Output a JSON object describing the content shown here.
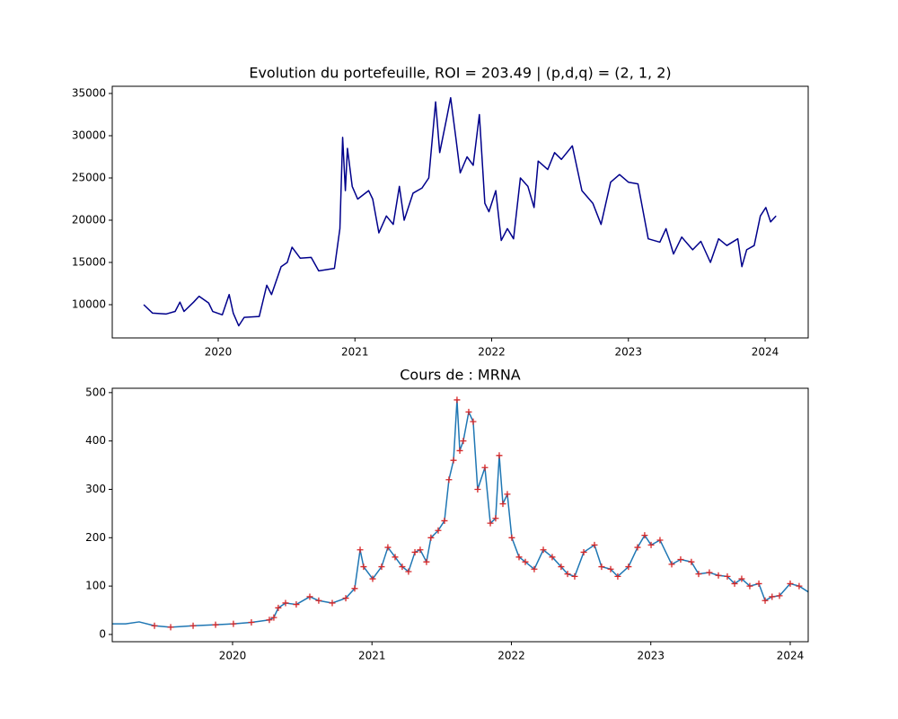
{
  "chart_data": [
    {
      "type": "line",
      "title": "Evolution du portefeuille, ROI = 203.49  |  (p,d,q) = (2, 1, 2)",
      "xlim": [
        2019.225,
        2024.315
      ],
      "xticks": [
        2020,
        2021,
        2022,
        2023,
        2024
      ],
      "ylim": [
        6064,
        35851
      ],
      "yticks": [
        10000,
        15000,
        20000,
        25000,
        30000,
        35000
      ],
      "series": [
        {
          "color": "#00008b",
          "x": [
            2019.455,
            2019.52,
            2019.62,
            2019.685,
            2019.72,
            2019.75,
            2019.82,
            2019.86,
            2019.93,
            2019.96,
            2020.03,
            2020.08,
            2020.11,
            2020.15,
            2020.19,
            2020.3,
            2020.355,
            2020.39,
            2020.46,
            2020.505,
            2020.54,
            2020.6,
            2020.68,
            2020.735,
            2020.85,
            2020.89,
            2020.91,
            2020.93,
            2020.945,
            2020.98,
            2021.02,
            2021.1,
            2021.13,
            2021.175,
            2021.23,
            2021.28,
            2021.325,
            2021.36,
            2021.425,
            2021.49,
            2021.54,
            2021.59,
            2021.62,
            2021.67,
            2021.7,
            2021.74,
            2021.77,
            2021.82,
            2021.865,
            2021.91,
            2021.95,
            2021.98,
            2022.03,
            2022.07,
            2022.115,
            2022.16,
            2022.21,
            2022.265,
            2022.31,
            2022.34,
            2022.41,
            2022.46,
            2022.51,
            2022.59,
            2022.66,
            2022.74,
            2022.8,
            2022.87,
            2022.935,
            2023.0,
            2023.07,
            2023.145,
            2023.23,
            2023.275,
            2023.33,
            2023.39,
            2023.47,
            2023.53,
            2023.6,
            2023.66,
            2023.72,
            2023.8,
            2023.83,
            2023.865,
            2023.92,
            2023.965,
            2024.005,
            2024.04,
            2024.08
          ],
          "values": [
            10000,
            9000,
            8900,
            9200,
            10300,
            9200,
            10300,
            11000,
            10200,
            9200,
            8800,
            11200,
            9000,
            7500,
            8500,
            8600,
            12300,
            11200,
            14500,
            15000,
            16800,
            15500,
            15600,
            14000,
            14300,
            19000,
            29800,
            23500,
            28500,
            24000,
            22500,
            23500,
            22500,
            18500,
            20500,
            19500,
            24000,
            20000,
            23200,
            23800,
            25000,
            34000,
            28000,
            32000,
            34500,
            29500,
            25600,
            27500,
            26500,
            32500,
            22000,
            21000,
            23500,
            17600,
            19000,
            17800,
            25000,
            24000,
            21500,
            27000,
            26000,
            28000,
            27200,
            28800,
            23500,
            22000,
            19500,
            24500,
            25400,
            24500,
            24300,
            17800,
            17400,
            19000,
            16000,
            18000,
            16500,
            17500,
            15000,
            17800,
            17000,
            17800,
            14500,
            16500,
            17000,
            20500,
            21500,
            19800,
            20500
          ]
        }
      ]
    },
    {
      "type": "line",
      "title": "Cours de : MRNA",
      "xlim": [
        2019.137,
        2024.129
      ],
      "xticks": [
        2020,
        2021,
        2022,
        2023,
        2024
      ],
      "ylim": [
        -15,
        509
      ],
      "yticks": [
        0,
        100,
        200,
        300,
        400,
        500
      ],
      "series": [
        {
          "color": "#1f77b4",
          "x": [
            2019.137,
            2019.233,
            2019.33,
            2019.44,
            2019.556,
            2019.717,
            2019.878,
            2020.006,
            2020.135,
            2020.264,
            2020.296,
            2020.328,
            2020.38,
            2020.457,
            2020.554,
            2020.618,
            2020.715,
            2020.812,
            2020.876,
            2020.915,
            2020.94,
            2021.005,
            2021.069,
            2021.114,
            2021.166,
            2021.217,
            2021.262,
            2021.308,
            2021.346,
            2021.391,
            2021.423,
            2021.475,
            2021.52,
            2021.552,
            2021.585,
            2021.61,
            2021.63,
            2021.655,
            2021.694,
            2021.726,
            2021.758,
            2021.81,
            2021.849,
            2021.887,
            2021.913,
            2021.939,
            2021.971,
            2022.003,
            2022.055,
            2022.1,
            2022.164,
            2022.229,
            2022.293,
            2022.357,
            2022.403,
            2022.454,
            2022.519,
            2022.596,
            2022.647,
            2022.712,
            2022.763,
            2022.84,
            2022.905,
            2022.956,
            2023.002,
            2023.066,
            2023.15,
            2023.214,
            2023.291,
            2023.343,
            2023.42,
            2023.485,
            2023.549,
            2023.601,
            2023.652,
            2023.71,
            2023.775,
            2023.82,
            2023.87,
            2023.923,
            2024.0,
            2024.064,
            2024.129
          ],
          "values": [
            22,
            22,
            26,
            18,
            15,
            18,
            20,
            22,
            25,
            30,
            35,
            55,
            65,
            62,
            78,
            70,
            65,
            75,
            95,
            175,
            140,
            115,
            140,
            180,
            160,
            140,
            130,
            170,
            175,
            150,
            200,
            215,
            235,
            320,
            360,
            485,
            380,
            400,
            460,
            440,
            300,
            345,
            230,
            240,
            370,
            270,
            290,
            200,
            160,
            150,
            135,
            175,
            160,
            140,
            125,
            120,
            170,
            185,
            140,
            135,
            120,
            140,
            180,
            205,
            185,
            195,
            145,
            155,
            150,
            125,
            128,
            122,
            120,
            105,
            115,
            100,
            105,
            70,
            78,
            80,
            105,
            100,
            88
          ]
        },
        {
          "color": "#d62728",
          "marker": "+",
          "x": [
            2019.44,
            2019.556,
            2019.717,
            2019.878,
            2020.006,
            2020.135,
            2020.264,
            2020.296,
            2020.328,
            2020.38,
            2020.457,
            2020.554,
            2020.618,
            2020.715,
            2020.812,
            2020.876,
            2020.915,
            2020.94,
            2021.005,
            2021.069,
            2021.114,
            2021.166,
            2021.217,
            2021.262,
            2021.308,
            2021.346,
            2021.391,
            2021.423,
            2021.475,
            2021.52,
            2021.552,
            2021.585,
            2021.61,
            2021.63,
            2021.655,
            2021.694,
            2021.726,
            2021.758,
            2021.81,
            2021.849,
            2021.887,
            2021.913,
            2021.939,
            2021.971,
            2022.003,
            2022.055,
            2022.1,
            2022.164,
            2022.229,
            2022.293,
            2022.357,
            2022.403,
            2022.454,
            2022.519,
            2022.596,
            2022.647,
            2022.712,
            2022.763,
            2022.84,
            2022.905,
            2022.956,
            2023.002,
            2023.066,
            2023.15,
            2023.214,
            2023.291,
            2023.343,
            2023.42,
            2023.485,
            2023.549,
            2023.601,
            2023.652,
            2023.71,
            2023.775,
            2023.82,
            2023.87,
            2023.923,
            2024.0,
            2024.064
          ],
          "values": [
            18,
            15,
            18,
            20,
            22,
            25,
            30,
            35,
            55,
            65,
            62,
            78,
            70,
            65,
            75,
            95,
            175,
            140,
            115,
            140,
            180,
            160,
            140,
            130,
            170,
            175,
            150,
            200,
            215,
            235,
            320,
            360,
            485,
            380,
            400,
            460,
            440,
            300,
            345,
            230,
            240,
            370,
            270,
            290,
            200,
            160,
            150,
            135,
            175,
            160,
            140,
            125,
            120,
            170,
            185,
            140,
            135,
            120,
            140,
            180,
            205,
            185,
            195,
            145,
            155,
            150,
            125,
            128,
            122,
            120,
            105,
            115,
            100,
            105,
            70,
            78,
            80,
            105,
            100
          ]
        }
      ]
    }
  ]
}
